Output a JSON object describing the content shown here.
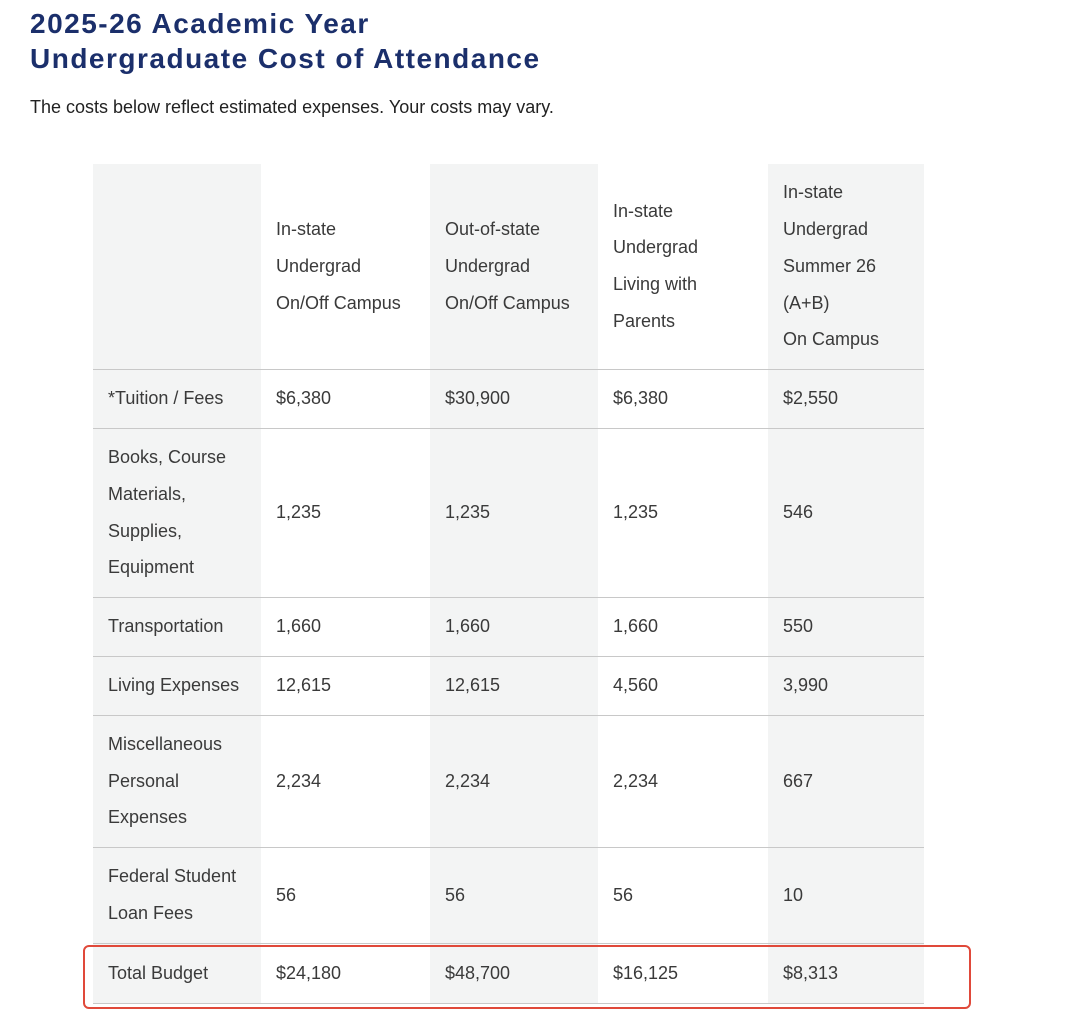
{
  "header": {
    "title": [
      "2025-26 Academic Year",
      "Undergraduate Cost of Attendance"
    ],
    "subtitle": "The costs below reflect estimated expenses.  Your costs may vary."
  },
  "table": {
    "columns": [
      [],
      [
        "In-state",
        "Undergrad",
        "On/Off Campus"
      ],
      [
        "Out-of-state",
        "Undergrad",
        "On/Off Campus"
      ],
      [
        "In-state",
        "Undergrad",
        "Living with",
        "Parents"
      ],
      [
        "In-state",
        "Undergrad",
        "Summer 26",
        "(A+B)",
        "On Campus"
      ]
    ],
    "rows": [
      [
        [
          "*Tuition / Fees"
        ],
        "$6,380",
        "$30,900",
        "$6,380",
        "$2,550"
      ],
      [
        [
          "Books, Course",
          "Materials,",
          "Supplies,",
          "Equipment"
        ],
        "1,235",
        "1,235",
        "1,235",
        "546"
      ],
      [
        [
          "Transportation"
        ],
        "1,660",
        "1,660",
        "1,660",
        "550"
      ],
      [
        [
          "Living Expenses"
        ],
        "12,615",
        "12,615",
        "4,560",
        "3,990"
      ],
      [
        [
          "Miscellaneous",
          "Personal",
          "Expenses"
        ],
        "2,234",
        "2,234",
        "2,234",
        "667"
      ],
      [
        [
          "Federal Student",
          "Loan Fees"
        ],
        "56",
        "56",
        "56",
        "10"
      ],
      [
        [
          "Total Budget"
        ],
        "$24,180",
        "$48,700",
        "$16,125",
        "$8,313"
      ]
    ]
  }
}
